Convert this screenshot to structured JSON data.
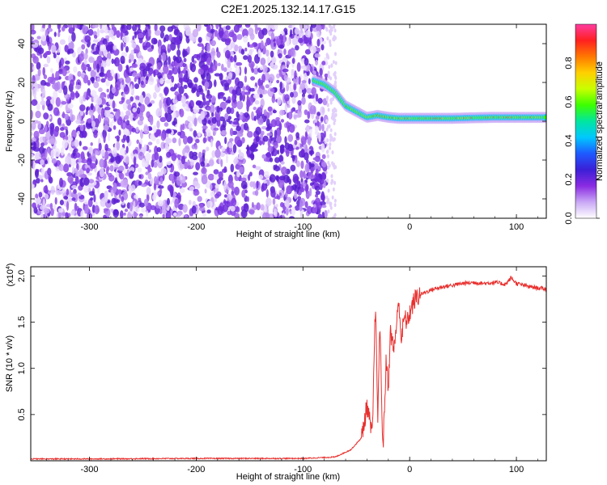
{
  "title": "C2E1.2025.132.14.17.G15",
  "colors": {
    "snr_line": "#e8302e",
    "ridge": "#e8302e",
    "background": "#ffffff"
  },
  "chart_data": [
    {
      "type": "heatmap",
      "xlabel": "Height of straight line (km)",
      "ylabel": "Frequency (Hz)",
      "xlim": [
        -355,
        128
      ],
      "ylim": [
        -50,
        50
      ],
      "x_ticks": [
        "-300",
        "-200",
        "-100",
        "0",
        "100"
      ],
      "x_tick_values": [
        -300,
        -200,
        -100,
        0,
        100
      ],
      "y_ticks": [
        "40",
        "20",
        "0",
        "-20",
        "-40"
      ],
      "y_tick_values": [
        40,
        20,
        0,
        -20,
        -40
      ],
      "colorbar": {
        "label": "Normalized spectral amplitude",
        "range": [
          0,
          1
        ],
        "ticks": [
          "0.0",
          "0.2",
          "0.4",
          "0.6",
          "0.8"
        ],
        "tick_values": [
          0.0,
          0.2,
          0.4,
          0.6,
          0.8
        ],
        "colors": [
          "#ffffff",
          "#c9a8f5",
          "#8a2be2",
          "#3b1fd6",
          "#1e5aff",
          "#00c8ff",
          "#00e6a0",
          "#3cff00",
          "#c8ff00",
          "#ffd000",
          "#ff7800",
          "#ff2020",
          "#ff3ca0"
        ]
      },
      "signal_ridge": {
        "x": [
          -90,
          -80,
          -70,
          -60,
          -50,
          -40,
          -30,
          -20,
          -10,
          0,
          20,
          40,
          60,
          80,
          100,
          128
        ],
        "y": [
          21,
          19,
          15,
          8,
          5,
          2,
          3,
          2,
          1.5,
          1.5,
          1.5,
          1.5,
          1.8,
          2,
          2,
          2
        ]
      }
    },
    {
      "type": "line",
      "xlabel": "Height of straight line (km)",
      "ylabel": "SNR (10 * v/v)",
      "y_multiplier": "(x10",
      "y_multiplier_exp": "4",
      "y_multiplier_close": ")",
      "xlim": [
        -355,
        128
      ],
      "ylim": [
        0,
        21000
      ],
      "x_ticks": [
        "-300",
        "-200",
        "-100",
        "0",
        "100"
      ],
      "x_tick_values": [
        -300,
        -200,
        -100,
        0,
        100
      ],
      "y_ticks": [
        "0.5",
        "1.0",
        "1.5",
        "2.0"
      ],
      "y_tick_values": [
        5000,
        10000,
        15000,
        20000
      ],
      "series": [
        {
          "x": [
            -355,
            -300,
            -200,
            -100,
            -70,
            -55,
            -45,
            -40,
            -35,
            -32,
            -30,
            -28,
            -25,
            -22,
            -20,
            -18,
            -15,
            -12,
            -10,
            -8,
            -5,
            -2,
            0,
            5,
            10,
            20,
            30,
            40,
            50,
            60,
            70,
            80,
            90,
            95,
            100,
            110,
            120,
            128
          ],
          "y": [
            200,
            200,
            250,
            250,
            400,
            1200,
            2500,
            6000,
            2500,
            17500,
            4000,
            15000,
            1000,
            11000,
            8000,
            14000,
            12000,
            15000,
            17500,
            13000,
            15500,
            15000,
            16000,
            17500,
            18000,
            18500,
            18800,
            19000,
            19200,
            19300,
            19200,
            19300,
            19100,
            19800,
            19200,
            18900,
            18700,
            18600
          ]
        }
      ]
    }
  ]
}
